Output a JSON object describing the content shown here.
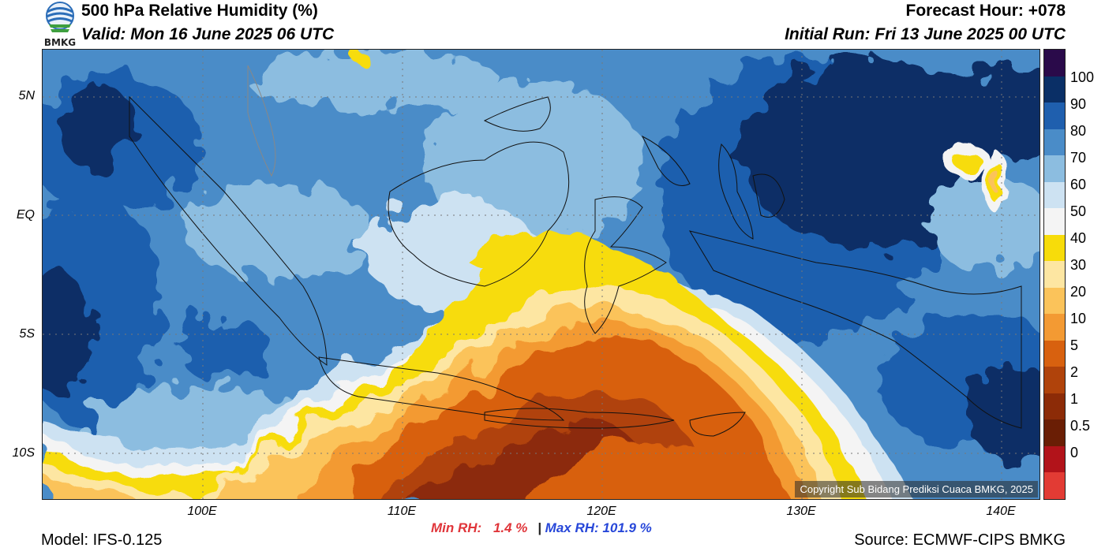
{
  "header": {
    "title": "500 hPa Relative Humidity (%)",
    "valid": "Valid: Mon 16 June 2025 06 UTC",
    "forecast_hour": "Forecast Hour: +078",
    "initial_run": "Initial Run: Fri 13 June 2025 00 UTC",
    "logo_text": "BMKG"
  },
  "map": {
    "lat_labels": [
      "5N",
      "EQ",
      "5S",
      "10S"
    ],
    "lon_labels": [
      "100E",
      "110E",
      "120E",
      "130E",
      "140E"
    ],
    "copyright": "Copyright Sub Bidang Prediksi Cuaca BMKG, 2025"
  },
  "colorbar": {
    "labels": [
      "100",
      "90",
      "80",
      "70",
      "60",
      "50",
      "40",
      "30",
      "20",
      "10",
      "5",
      "2",
      "1",
      "0.5",
      "0"
    ],
    "colors": [
      "#2a0a4a",
      "#0a2f66",
      "#1f5fae",
      "#4a8cc8",
      "#8cbde0",
      "#cde2f2",
      "#f4f4f4",
      "#f7dc0a",
      "#fde6a2",
      "#fbc35a",
      "#f39a33",
      "#d8610f",
      "#b0430b",
      "#8c2b07",
      "#6a1e05",
      "#b2131a",
      "#e23b34"
    ]
  },
  "stats": {
    "min_label": "Min RH:",
    "min_value": "1.4 %",
    "separator": "|",
    "max_label": "Max RH:",
    "max_value": "101.9 %"
  },
  "footer": {
    "model": "Model: IFS-0.125",
    "source": "Source: ECMWF-CIPS BMKG"
  }
}
